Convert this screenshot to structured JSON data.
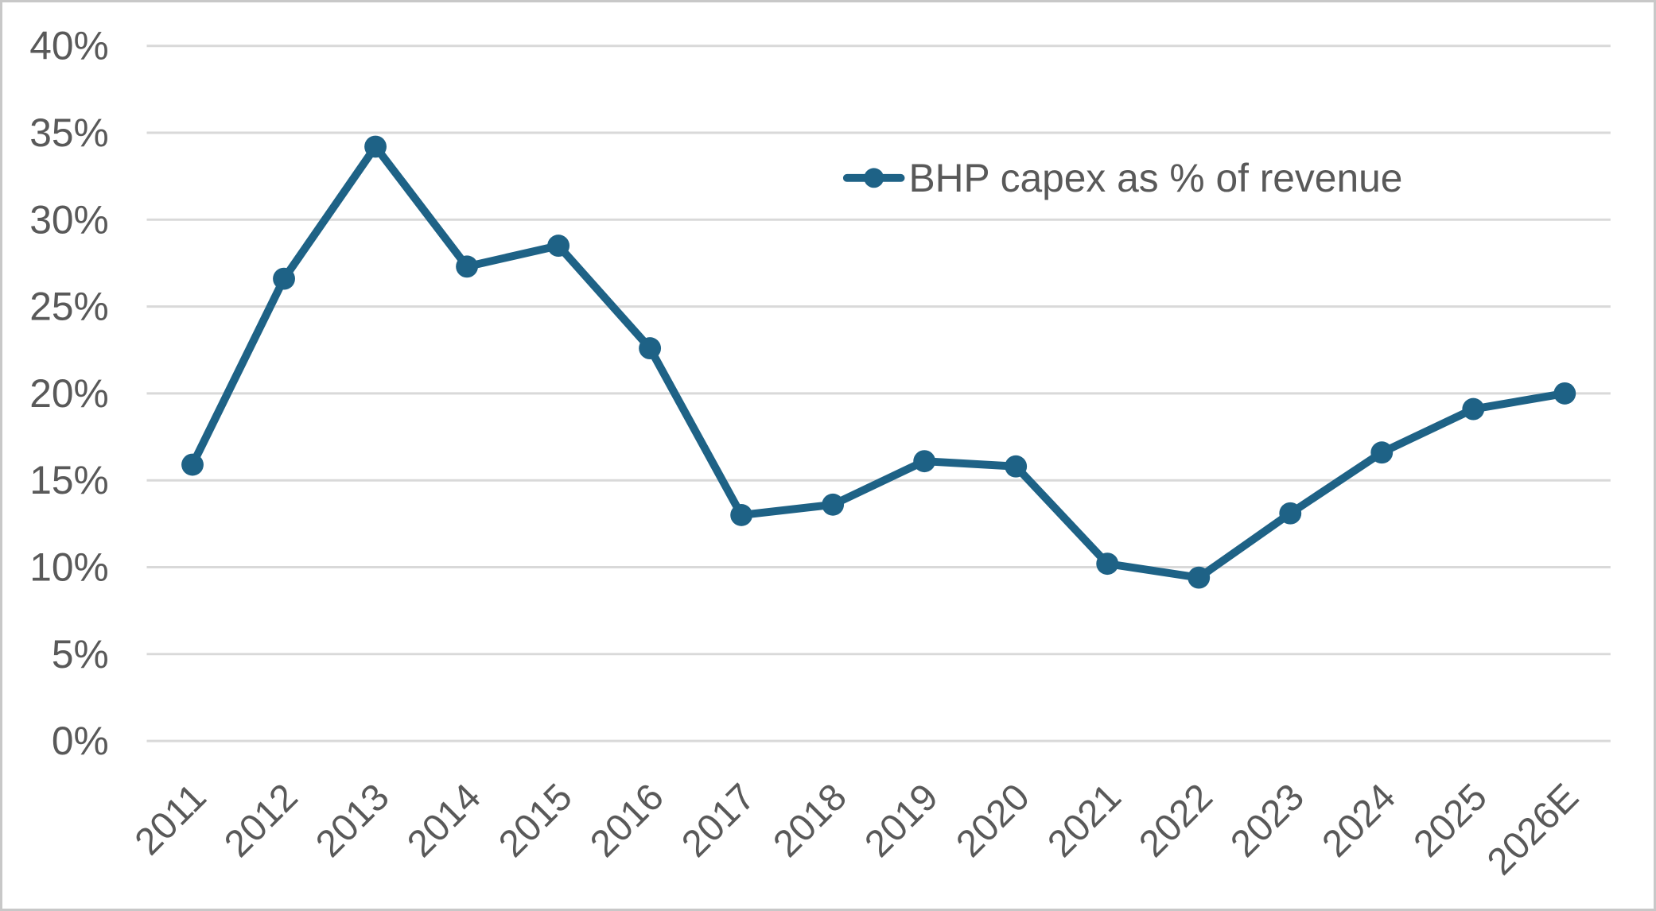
{
  "chart_data": {
    "type": "line",
    "title": "",
    "xlabel": "",
    "ylabel": "",
    "categories": [
      "2011",
      "2012",
      "2013",
      "2014",
      "2015",
      "2016",
      "2017",
      "2018",
      "2019",
      "2020",
      "2021",
      "2022",
      "2023",
      "2024",
      "2025",
      "2026E"
    ],
    "series": [
      {
        "name": "BHP capex as % of revenue",
        "values": [
          15.9,
          26.6,
          34.2,
          27.3,
          28.5,
          22.6,
          13.0,
          13.6,
          16.1,
          15.8,
          10.2,
          9.4,
          13.1,
          16.6,
          19.1,
          20.0
        ]
      }
    ],
    "ylim": [
      0,
      40
    ],
    "y_ticks": [
      {
        "value": 0,
        "label": "0%"
      },
      {
        "value": 5,
        "label": "5%"
      },
      {
        "value": 10,
        "label": "10%"
      },
      {
        "value": 15,
        "label": "15%"
      },
      {
        "value": 20,
        "label": "20%"
      },
      {
        "value": 25,
        "label": "25%"
      },
      {
        "value": 30,
        "label": "30%"
      },
      {
        "value": 35,
        "label": "35%"
      },
      {
        "value": 40,
        "label": "40%"
      }
    ],
    "grid": "horizontal",
    "legend_position": "inside-top-right",
    "x_label_rotation_deg": -45,
    "colors": {
      "line": "#1e6286",
      "grid": "#d9d9d9",
      "axis_text": "#595959",
      "background": "#ffffff",
      "frame_border": "#c8c8c8"
    }
  }
}
